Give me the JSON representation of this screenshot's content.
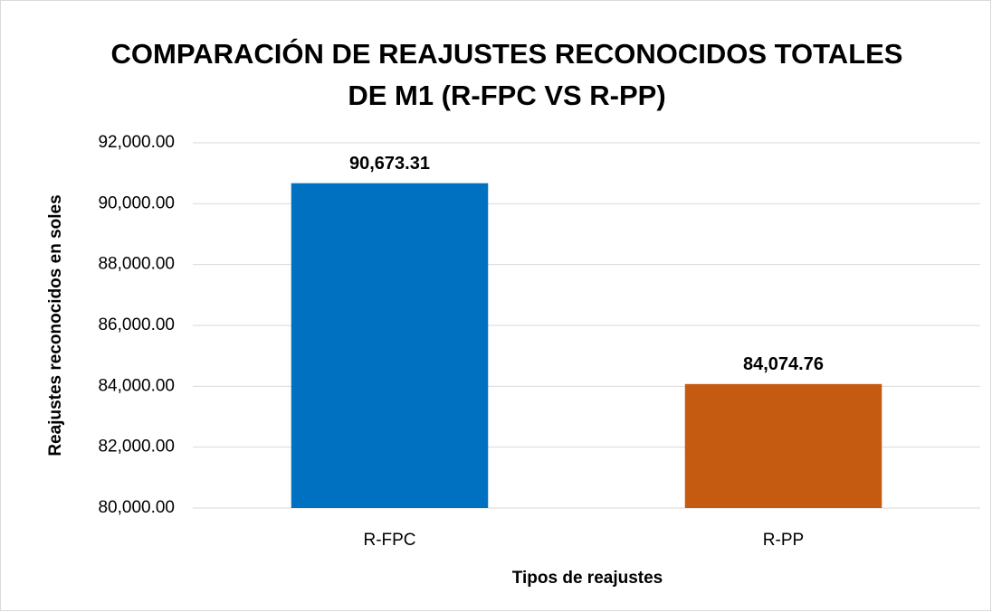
{
  "chart_data": {
    "type": "bar",
    "title": [
      "COMPARACIÓN DE REAJUSTES RECONOCIDOS TOTALES",
      "DE M1 (R-FPC VS R-PP)"
    ],
    "x_label": "Tipos de reajustes",
    "y_label": "Reajustes reconocidos en soles",
    "categories": [
      "R-FPC",
      "R-PP"
    ],
    "values": [
      90673.31,
      84074.76
    ],
    "value_labels": [
      "90,673.31",
      "84,074.76"
    ],
    "colors": [
      "#0070c0",
      "#c55a11"
    ],
    "ylim": [
      80000,
      92000
    ],
    "yticks": [
      {
        "value": 80000,
        "label": "80,000.00"
      },
      {
        "value": 82000,
        "label": "82,000.00"
      },
      {
        "value": 84000,
        "label": "84,000.00"
      },
      {
        "value": 86000,
        "label": "86,000.00"
      },
      {
        "value": 88000,
        "label": "88,000.00"
      },
      {
        "value": 90000,
        "label": "90,000.00"
      },
      {
        "value": 92000,
        "label": "92,000.00"
      }
    ],
    "grid": true
  }
}
